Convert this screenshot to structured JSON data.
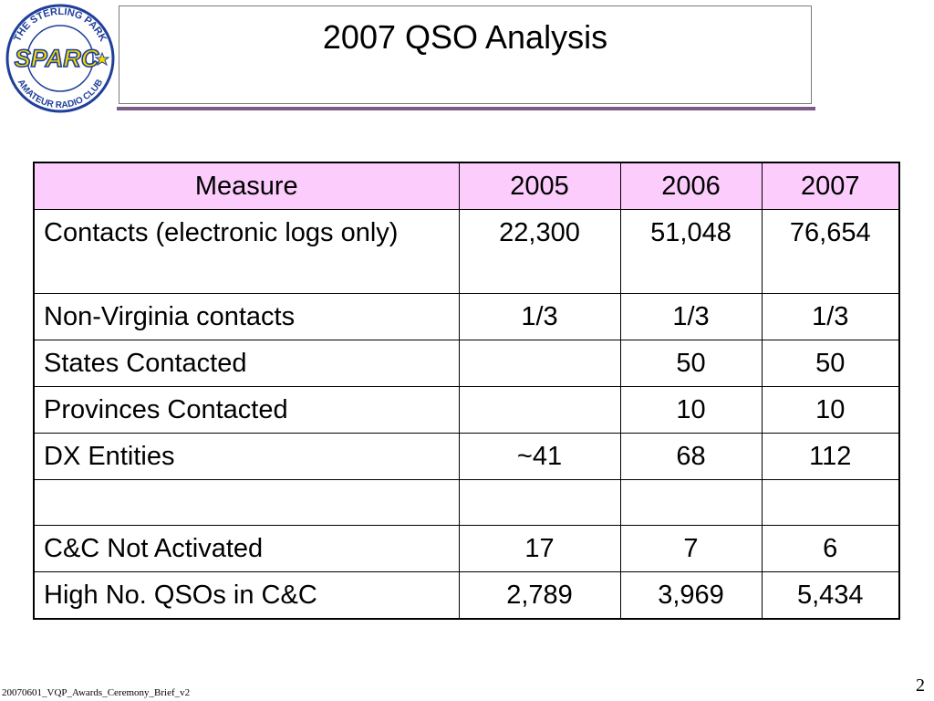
{
  "slide": {
    "title": "2007 QSO Analysis",
    "footer": "20070601_VQP_Awards_Ceremony_Brief_v2",
    "page_number": "2"
  },
  "logo": {
    "top_text": "THE STERLING PARK",
    "bottom_text": "AMATEUR RADIO CLUB",
    "wordmark": "SPARC"
  },
  "table": {
    "headers": [
      "Measure",
      "2005",
      "2006",
      "2007"
    ],
    "rows": [
      [
        "Contacts (electronic logs only)",
        "22,300",
        "51,048",
        "76,654"
      ],
      [
        "Non-Virginia contacts",
        "1/3",
        "1/3",
        "1/3"
      ],
      [
        "States Contacted",
        "",
        "50",
        "50"
      ],
      [
        "Provinces Contacted",
        "",
        "10",
        "10"
      ],
      [
        "DX Entities",
        "~41",
        "68",
        "112"
      ],
      [
        "",
        "",
        "",
        ""
      ],
      [
        "C&C Not Activated",
        "17",
        "7",
        "6"
      ],
      [
        "High No. QSOs in C&C",
        "2,789",
        "3,969",
        "5,434"
      ]
    ]
  },
  "colors": {
    "header_bg": "#fcccfc",
    "title_rule": "#7b5b86",
    "logo_blue": "#1f3f9a",
    "logo_yellow": "#f5d800"
  }
}
